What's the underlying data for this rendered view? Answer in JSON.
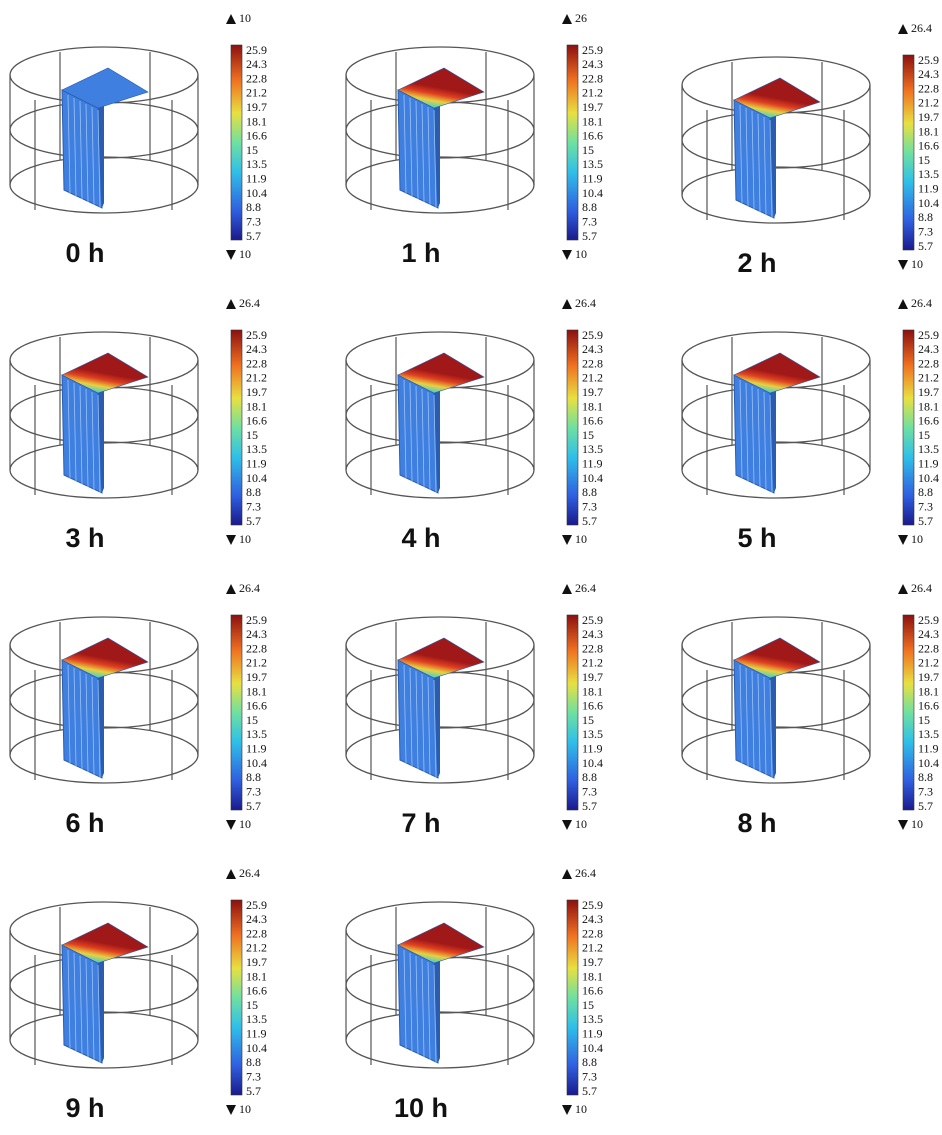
{
  "panels": [
    {
      "label": "0 h",
      "max": 10,
      "min": 10,
      "ticks": [
        25.9,
        24.3,
        22.8,
        21.2,
        19.7,
        18.1,
        16.6,
        15,
        13.5,
        11.9,
        10.4,
        8.8,
        7.3,
        5.7
      ]
    },
    {
      "label": "1 h",
      "max": 26,
      "min": 10,
      "ticks": [
        25.9,
        24.3,
        22.8,
        21.2,
        19.7,
        18.1,
        16.6,
        15,
        13.5,
        11.9,
        10.4,
        8.8,
        7.3,
        5.7
      ]
    },
    {
      "label": "2 h",
      "max": 26.4,
      "min": 10,
      "ticks": [
        25.9,
        24.3,
        22.8,
        21.2,
        19.7,
        18.1,
        16.6,
        15,
        13.5,
        11.9,
        10.4,
        8.8,
        7.3,
        5.7
      ]
    },
    {
      "label": "3 h",
      "max": 26.4,
      "min": 10,
      "ticks": [
        25.9,
        24.3,
        22.8,
        21.2,
        19.7,
        18.1,
        16.6,
        15,
        13.5,
        11.9,
        10.4,
        8.8,
        7.3,
        5.7
      ]
    },
    {
      "label": "4 h",
      "max": 26.4,
      "min": 10,
      "ticks": [
        25.9,
        24.3,
        22.8,
        21.2,
        19.7,
        18.1,
        16.6,
        15,
        13.5,
        11.9,
        10.4,
        8.8,
        7.3,
        5.7
      ]
    },
    {
      "label": "5 h",
      "max": 26.4,
      "min": 10,
      "ticks": [
        25.9,
        24.3,
        22.8,
        21.2,
        19.7,
        18.1,
        16.6,
        15,
        13.5,
        11.9,
        10.4,
        8.8,
        7.3,
        5.7
      ]
    },
    {
      "label": "6 h",
      "max": 26.4,
      "min": 10,
      "ticks": [
        25.9,
        24.3,
        22.8,
        21.2,
        19.7,
        18.1,
        16.6,
        15,
        13.5,
        11.9,
        10.4,
        8.8,
        7.3,
        5.7
      ]
    },
    {
      "label": "7 h",
      "max": 26.4,
      "min": 10,
      "ticks": [
        25.9,
        24.3,
        22.8,
        21.2,
        19.7,
        18.1,
        16.6,
        15,
        13.5,
        11.9,
        10.4,
        8.8,
        7.3,
        5.7
      ]
    },
    {
      "label": "8 h",
      "max": 26.4,
      "min": 10,
      "ticks": [
        25.9,
        24.3,
        22.8,
        21.2,
        19.7,
        18.1,
        16.6,
        15,
        13.5,
        11.9,
        10.4,
        8.8,
        7.3,
        5.7
      ]
    },
    {
      "label": "9 h",
      "max": 26.4,
      "min": 10,
      "ticks": [
        25.9,
        24.3,
        22.8,
        21.2,
        19.7,
        18.1,
        16.6,
        15,
        13.5,
        11.9,
        10.4,
        8.8,
        7.3,
        5.7
      ]
    },
    {
      "label": "10 h",
      "max": 26.4,
      "min": 10,
      "ticks": [
        25.9,
        24.3,
        22.8,
        21.2,
        19.7,
        18.1,
        16.6,
        15,
        13.5,
        11.9,
        10.4,
        8.8,
        7.3,
        5.7
      ]
    }
  ]
}
